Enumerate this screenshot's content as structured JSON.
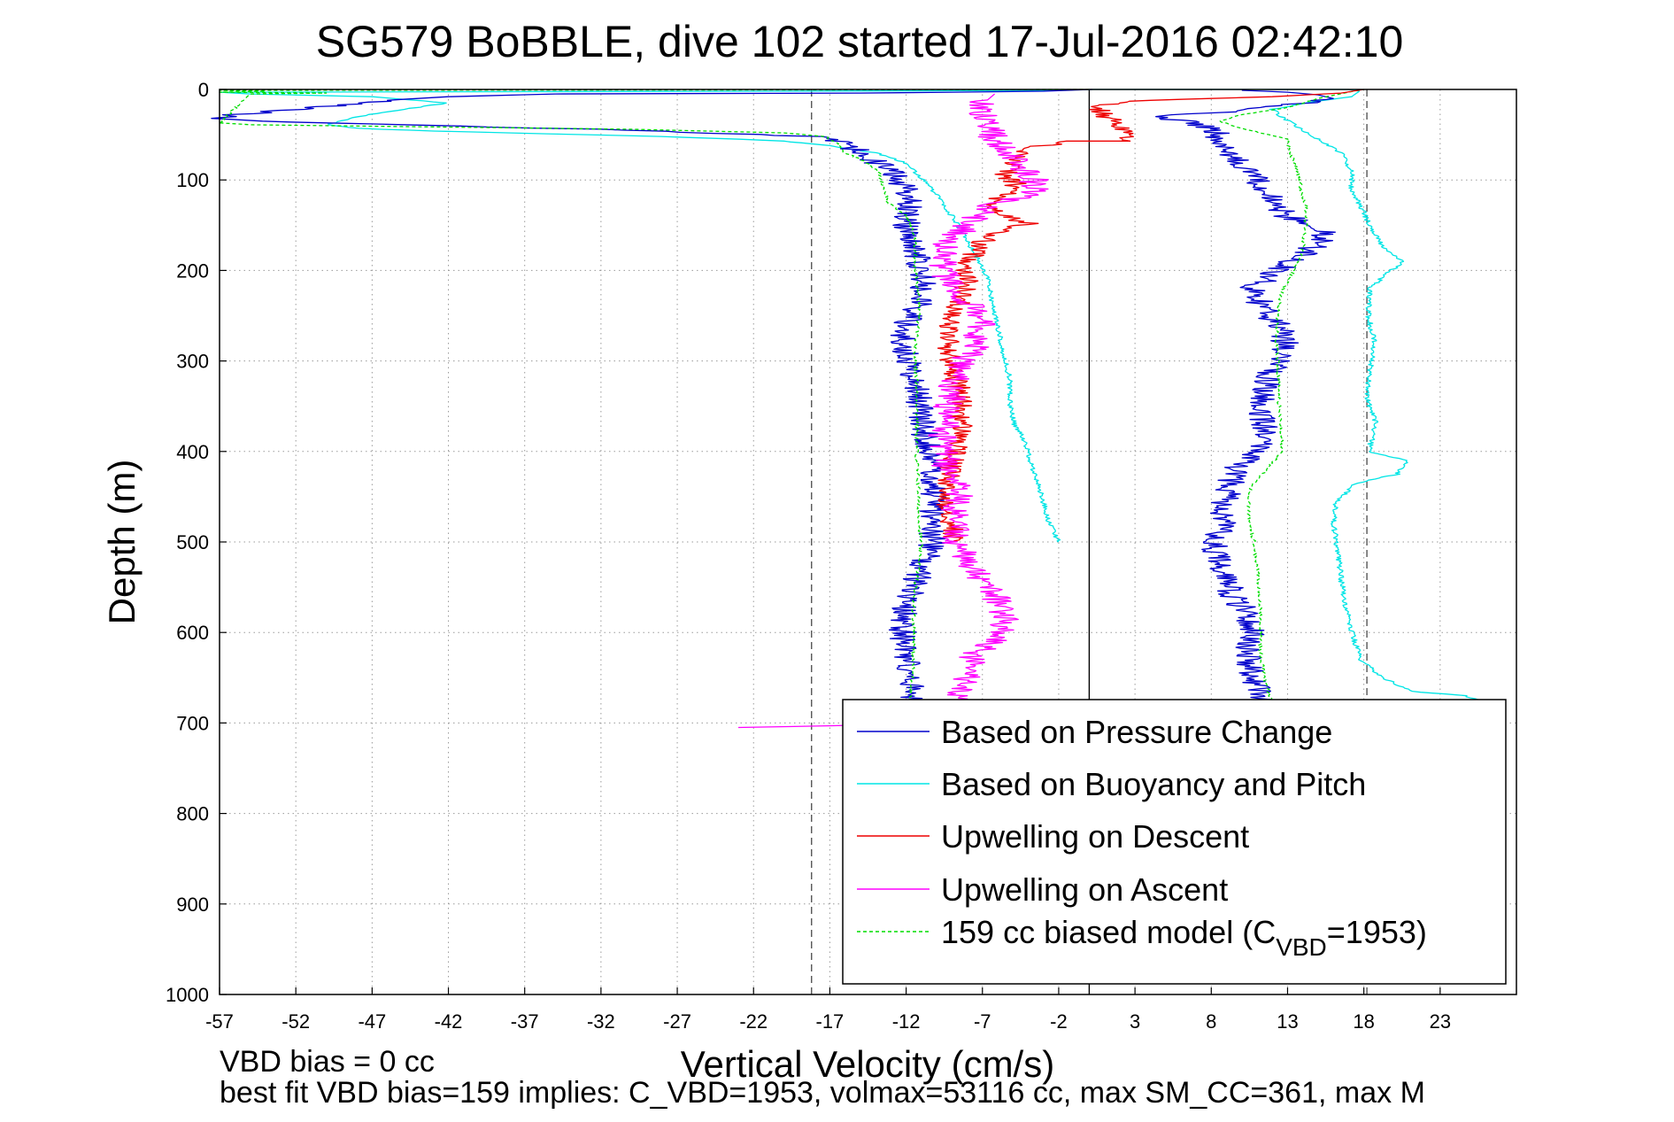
{
  "chart_data": {
    "type": "line",
    "title": "SG579 BoBBLE, dive 102 started 17-Jul-2016 02:42:10",
    "xlabel": "Vertical Velocity (cm/s)",
    "ylabel": "Depth (m)",
    "xlim": [
      -57,
      28
    ],
    "ylim": [
      0,
      1000
    ],
    "y_inverted": true,
    "xticks": [
      -57,
      -52,
      -47,
      -42,
      -37,
      -32,
      -27,
      -22,
      -17,
      -12,
      -7,
      -2,
      3,
      8,
      13,
      18,
      23
    ],
    "yticks": [
      0,
      100,
      200,
      300,
      400,
      500,
      600,
      700,
      800,
      900,
      1000
    ],
    "grid": true,
    "legend_position": "lower-right",
    "reference_lines": [
      {
        "x": -18.2,
        "style": "dashed",
        "color": "#555555"
      },
      {
        "x": 0,
        "style": "solid",
        "color": "#000000"
      },
      {
        "x": 18.2,
        "style": "dashed",
        "color": "#555555"
      }
    ],
    "footer": [
      "VBD bias = 0 cc",
      "best fit VBD bias=159 implies: C_VBD=1953, volmax=53116 cc, max SM_CC=361, max M"
    ],
    "series": [
      {
        "name": "Based on Pressure Change",
        "color": "#0000cc",
        "points": [
          [
            0.2,
            0
          ],
          [
            -3,
            2
          ],
          [
            -15,
            4
          ],
          [
            -35,
            5
          ],
          [
            -42,
            8
          ],
          [
            -46,
            12
          ],
          [
            -49,
            17
          ],
          [
            -52,
            22
          ],
          [
            -56,
            28
          ],
          [
            -57,
            33
          ],
          [
            -50,
            37
          ],
          [
            -30,
            45
          ],
          [
            -18,
            52
          ],
          [
            -16,
            60
          ],
          [
            -15,
            70
          ],
          [
            -14,
            80
          ],
          [
            -13,
            92
          ],
          [
            -12,
            110
          ],
          [
            -11.8,
            130
          ],
          [
            -12,
            150
          ],
          [
            -11.5,
            170
          ],
          [
            -11,
            200
          ],
          [
            -10.8,
            230
          ],
          [
            -12,
            260
          ],
          [
            -12.4,
            280
          ],
          [
            -11.8,
            300
          ],
          [
            -11.2,
            330
          ],
          [
            -11,
            360
          ],
          [
            -10.6,
            400
          ],
          [
            -10.2,
            430
          ],
          [
            -10.2,
            460
          ],
          [
            -10.3,
            500
          ],
          [
            -11,
            530
          ],
          [
            -11.8,
            560
          ],
          [
            -12.3,
            590
          ],
          [
            -12.1,
            620
          ],
          [
            -11.8,
            650
          ],
          [
            -11.5,
            680
          ],
          [
            11.4,
            680
          ],
          [
            11,
            660
          ],
          [
            10.6,
            640
          ],
          [
            10.4,
            620
          ],
          [
            10.6,
            600
          ],
          [
            10.4,
            580
          ],
          [
            9.4,
            560
          ],
          [
            9,
            540
          ],
          [
            8.4,
            520
          ],
          [
            8.2,
            500
          ],
          [
            8.8,
            480
          ],
          [
            8.7,
            460
          ],
          [
            9.2,
            440
          ],
          [
            9.5,
            420
          ],
          [
            11,
            400
          ],
          [
            11.8,
            380
          ],
          [
            11.2,
            360
          ],
          [
            11.4,
            340
          ],
          [
            11.6,
            320
          ],
          [
            12.4,
            300
          ],
          [
            12.8,
            280
          ],
          [
            12.4,
            260
          ],
          [
            11.3,
            240
          ],
          [
            10.7,
            220
          ],
          [
            12.4,
            200
          ],
          [
            14.3,
            180
          ],
          [
            15.5,
            160
          ],
          [
            15,
            150
          ],
          [
            13,
            140
          ],
          [
            12.3,
            130
          ],
          [
            11.7,
            115
          ],
          [
            11,
            100
          ],
          [
            10,
            85
          ],
          [
            9.2,
            70
          ],
          [
            8.5,
            55
          ],
          [
            8.2,
            45
          ],
          [
            6,
            34
          ],
          [
            4,
            30
          ],
          [
            8,
            26
          ],
          [
            12,
            20
          ],
          [
            16,
            10
          ],
          [
            15,
            6
          ],
          [
            13,
            3
          ],
          [
            10,
            1
          ]
        ]
      },
      {
        "name": "Based on Buoyancy and Pitch",
        "color": "#00e5e5",
        "points": [
          [
            -2,
            500
          ],
          [
            -2.6,
            480
          ],
          [
            -3.1,
            450
          ],
          [
            -3.7,
            420
          ],
          [
            -4,
            400
          ],
          [
            -4.5,
            380
          ],
          [
            -4.9,
            370
          ],
          [
            -5.2,
            350
          ],
          [
            -5.2,
            320
          ],
          [
            -5.5,
            300
          ],
          [
            -5.9,
            270
          ],
          [
            -6.3,
            240
          ],
          [
            -6.6,
            210
          ],
          [
            -7.2,
            190
          ],
          [
            -7.9,
            170
          ],
          [
            -8.6,
            150
          ],
          [
            -9.6,
            125
          ],
          [
            -10.8,
            100
          ],
          [
            -12.2,
            80
          ],
          [
            -14,
            70
          ],
          [
            -17,
            62
          ],
          [
            -20,
            57
          ],
          [
            -23,
            55
          ],
          [
            -28,
            52
          ],
          [
            -33,
            50
          ],
          [
            -38,
            48
          ],
          [
            -43,
            46
          ],
          [
            -48,
            43
          ],
          [
            -50,
            39
          ],
          [
            -48,
            30
          ],
          [
            -45,
            22
          ],
          [
            -42,
            15
          ],
          [
            -47,
            8
          ],
          [
            -55,
            5
          ],
          [
            -57,
            3
          ],
          [
            -20,
            2
          ],
          [
            -3,
            1
          ],
          [
            0.3,
            0
          ],
          [
            17,
            0
          ],
          [
            17.7,
            2
          ],
          [
            17.2,
            8
          ],
          [
            14.5,
            14
          ],
          [
            12,
            22
          ],
          [
            12.6,
            30
          ],
          [
            13.5,
            40
          ],
          [
            15,
            55
          ],
          [
            16.5,
            70
          ],
          [
            17.2,
            90
          ],
          [
            17.2,
            110
          ],
          [
            17.8,
            130
          ],
          [
            18.4,
            150
          ],
          [
            19.3,
            175
          ],
          [
            20.6,
            190
          ],
          [
            19.4,
            205
          ],
          [
            18.4,
            220
          ],
          [
            18.3,
            250
          ],
          [
            18.7,
            280
          ],
          [
            18.4,
            310
          ],
          [
            18.2,
            340
          ],
          [
            18.8,
            370
          ],
          [
            18.3,
            400
          ],
          [
            20.8,
            410
          ],
          [
            20.2,
            425
          ],
          [
            17.5,
            435
          ],
          [
            16.2,
            455
          ],
          [
            16,
            480
          ],
          [
            16.3,
            510
          ],
          [
            16.5,
            540
          ],
          [
            16.8,
            570
          ],
          [
            17.2,
            600
          ],
          [
            17.8,
            630
          ],
          [
            19.2,
            650
          ],
          [
            21.2,
            665
          ],
          [
            24.6,
            670
          ],
          [
            26.5,
            678
          ],
          [
            27,
            690
          ]
        ]
      },
      {
        "name": "Upwelling on Descent",
        "color": "#ee0000",
        "points": [
          [
            18,
            0
          ],
          [
            16.5,
            4
          ],
          [
            12,
            8
          ],
          [
            8,
            10
          ],
          [
            4,
            12
          ],
          [
            1.5,
            15
          ],
          [
            0.4,
            20
          ],
          [
            1.2,
            30
          ],
          [
            2.5,
            45
          ],
          [
            2.4,
            57
          ],
          [
            -1.5,
            57
          ],
          [
            -3.8,
            65
          ],
          [
            -5,
            80
          ],
          [
            -5.5,
            95
          ],
          [
            -4.8,
            105
          ],
          [
            -5.2,
            115
          ],
          [
            -6.8,
            125
          ],
          [
            -5.6,
            140
          ],
          [
            -4,
            148
          ],
          [
            -6.5,
            160
          ],
          [
            -7.3,
            175
          ],
          [
            -8,
            195
          ],
          [
            -8,
            215
          ],
          [
            -8.4,
            230
          ],
          [
            -8.7,
            245
          ],
          [
            -9.2,
            260
          ],
          [
            -9.2,
            280
          ],
          [
            -9.1,
            300
          ],
          [
            -8.7,
            320
          ],
          [
            -8.4,
            340
          ],
          [
            -8.4,
            360
          ],
          [
            -8.3,
            380
          ],
          [
            -8.8,
            400
          ],
          [
            -9.1,
            420
          ],
          [
            -9.5,
            440
          ],
          [
            -9.3,
            460
          ],
          [
            -9,
            480
          ],
          [
            -8.9,
            500
          ]
        ]
      },
      {
        "name": "Upwelling on Ascent",
        "color": "#ff00ff",
        "points": [
          [
            -23,
            705
          ],
          [
            -20,
            704
          ],
          [
            -17,
            703
          ],
          [
            -14,
            702
          ],
          [
            -11,
            695
          ],
          [
            -9.2,
            685
          ],
          [
            -8.7,
            670
          ],
          [
            -8.2,
            655
          ],
          [
            -7.8,
            640
          ],
          [
            -7.6,
            625
          ],
          [
            -6.3,
            610
          ],
          [
            -5.5,
            595
          ],
          [
            -5.8,
            575
          ],
          [
            -6.3,
            555
          ],
          [
            -7.4,
            535
          ],
          [
            -8.2,
            515
          ],
          [
            -8.8,
            495
          ],
          [
            -8.9,
            475
          ],
          [
            -8.6,
            455
          ],
          [
            -8.6,
            440
          ],
          [
            -9.7,
            425
          ],
          [
            -9.4,
            405
          ],
          [
            -9.6,
            385
          ],
          [
            -9.4,
            365
          ],
          [
            -9.1,
            340
          ],
          [
            -8.8,
            315
          ],
          [
            -8.2,
            300
          ],
          [
            -7.4,
            280
          ],
          [
            -7,
            260
          ],
          [
            -7.4,
            245
          ],
          [
            -8.3,
            230
          ],
          [
            -9.4,
            210
          ],
          [
            -9.8,
            185
          ],
          [
            -9,
            165
          ],
          [
            -7.6,
            145
          ],
          [
            -6.6,
            130
          ],
          [
            -4.8,
            120
          ],
          [
            -3.4,
            110
          ],
          [
            -3.8,
            95
          ],
          [
            -5.5,
            70
          ],
          [
            -6.4,
            50
          ],
          [
            -6.9,
            30
          ],
          [
            -6.9,
            15
          ],
          [
            -6.2,
            5
          ]
        ]
      },
      {
        "name": "159 cc biased model (C",
        "subscript": "VBD",
        "suffix": "=1953)",
        "color": "#00dd00",
        "dashed": true,
        "points": [
          [
            0,
            0
          ],
          [
            -20,
            0.5
          ],
          [
            -57,
            1
          ],
          [
            -54,
            2
          ],
          [
            -57,
            3
          ],
          [
            -50,
            4
          ],
          [
            -55,
            5
          ],
          [
            -57,
            37
          ],
          [
            -55,
            39
          ],
          [
            -45,
            41
          ],
          [
            -30,
            44
          ],
          [
            -20,
            48
          ],
          [
            -17.3,
            52
          ],
          [
            -16.5,
            60
          ],
          [
            -16,
            70
          ],
          [
            -14.6,
            80
          ],
          [
            -13.8,
            92
          ],
          [
            -13.4,
            110
          ],
          [
            -13.2,
            125
          ],
          [
            -12,
            140
          ],
          [
            -11.5,
            160
          ],
          [
            -11.4,
            180
          ],
          [
            -11.4,
            200
          ],
          [
            -11.2,
            230
          ],
          [
            -11.2,
            260
          ],
          [
            -11.5,
            290
          ],
          [
            -11.3,
            320
          ],
          [
            -11.3,
            350
          ],
          [
            -11.3,
            380
          ],
          [
            -11.3,
            410
          ],
          [
            -11.2,
            440
          ],
          [
            -11.2,
            470
          ],
          [
            -11,
            500
          ],
          [
            -11.2,
            530
          ],
          [
            -11.5,
            560
          ],
          [
            -11.5,
            590
          ],
          [
            -11.5,
            620
          ],
          [
            -11.6,
            650
          ],
          [
            -11.7,
            680
          ],
          [
            12,
            680
          ],
          [
            11.5,
            650
          ],
          [
            11.2,
            620
          ],
          [
            11.2,
            590
          ],
          [
            11.2,
            560
          ],
          [
            11,
            530
          ],
          [
            10.8,
            500
          ],
          [
            10.4,
            470
          ],
          [
            10.6,
            440
          ],
          [
            11.6,
            420
          ],
          [
            12.6,
            400
          ],
          [
            12.6,
            370
          ],
          [
            12.4,
            340
          ],
          [
            12.4,
            310
          ],
          [
            12.3,
            280
          ],
          [
            12.3,
            250
          ],
          [
            12.7,
            220
          ],
          [
            13.6,
            195
          ],
          [
            14,
            175
          ],
          [
            14.2,
            150
          ],
          [
            14.2,
            130
          ],
          [
            13.9,
            110
          ],
          [
            13.6,
            90
          ],
          [
            13.2,
            70
          ],
          [
            13,
            55
          ],
          [
            10,
            43
          ],
          [
            8.5,
            35
          ],
          [
            10,
            28
          ],
          [
            13,
            20
          ],
          [
            15,
            10
          ],
          [
            17,
            3
          ],
          [
            18,
            0
          ]
        ]
      }
    ]
  }
}
